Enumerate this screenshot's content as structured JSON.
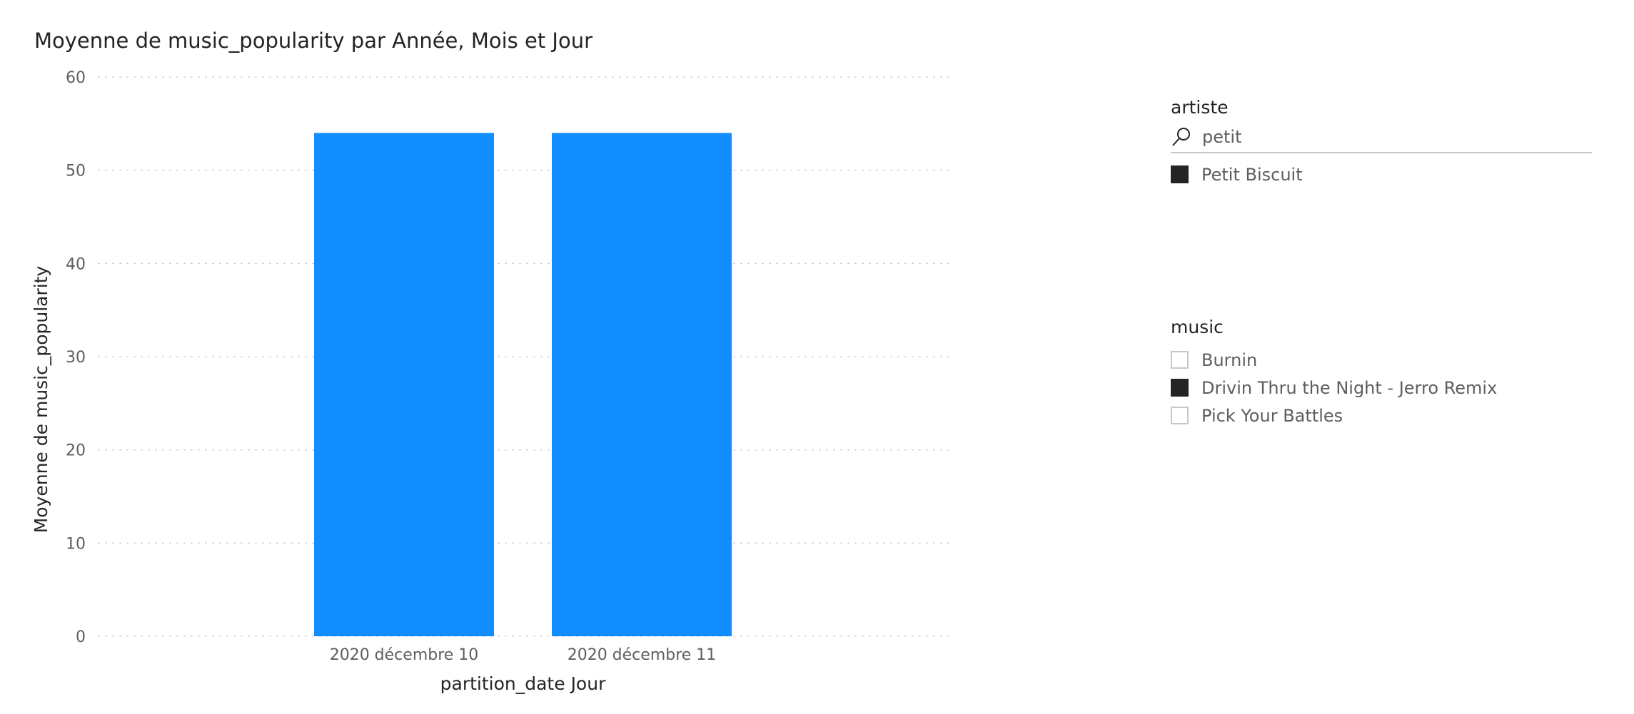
{
  "chart": {
    "title": "Moyenne de music_popularity par Année, Mois et Jour"
  },
  "chart_data": {
    "type": "bar",
    "title": "Moyenne de music_popularity par Année, Mois et Jour",
    "categories": [
      "2020 décembre 10",
      "2020 décembre 11"
    ],
    "values": [
      54,
      54
    ],
    "xlabel": "partition_date Jour",
    "ylabel": "Moyenne de music_popularity",
    "ylim": [
      0,
      60
    ],
    "yticks": [
      0,
      10,
      20,
      30,
      40,
      50,
      60
    ],
    "grid": true,
    "legend": "none",
    "bar_color": "#118DFF"
  },
  "slicer_artiste": {
    "header": "artiste",
    "search_value": "petit",
    "items": [
      {
        "label": "Petit Biscuit",
        "checked": true
      }
    ]
  },
  "slicer_music": {
    "header": "music",
    "items": [
      {
        "label": "Burnin",
        "checked": false
      },
      {
        "label": "Drivin Thru the Night - Jerro Remix",
        "checked": true
      },
      {
        "label": "Pick Your Battles",
        "checked": false
      }
    ]
  }
}
